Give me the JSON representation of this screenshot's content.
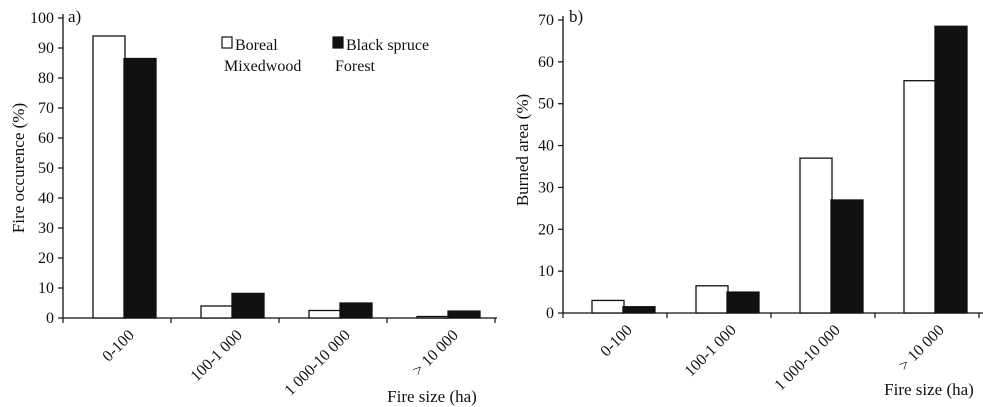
{
  "chart_data": [
    {
      "type": "bar",
      "panel_label": "a)",
      "categories": [
        "0-100",
        "100-1 000",
        "1 000-10 000",
        "> 10 000"
      ],
      "series": [
        {
          "name": "Boreal Mixedwood",
          "legend_lines": [
            "Boreal",
            "Mixedwood"
          ],
          "fill": "#ffffff",
          "values": [
            94,
            4,
            2.5,
            0.5
          ]
        },
        {
          "name": "Black spruce Forest",
          "legend_lines": [
            "Black spruce",
            "Forest"
          ],
          "fill": "#111111",
          "values": [
            86.5,
            8.2,
            5,
            2.3
          ]
        }
      ],
      "title": "",
      "xlabel": "Fire size (ha)",
      "ylabel": "Fire occurence (%)",
      "ylim": [
        0,
        100
      ],
      "yticks": [
        0,
        10,
        20,
        30,
        40,
        50,
        60,
        70,
        80,
        90,
        100
      ],
      "legend_position": "top-right",
      "grid": false
    },
    {
      "type": "bar",
      "panel_label": "b)",
      "categories": [
        "0-100",
        "100-1 000",
        "1 000-10 000",
        "> 10 000"
      ],
      "series": [
        {
          "name": "Boreal Mixedwood",
          "fill": "#ffffff",
          "values": [
            3,
            6.5,
            37,
            55.5
          ]
        },
        {
          "name": "Black spruce Forest",
          "fill": "#111111",
          "values": [
            1.5,
            5,
            27,
            68.5
          ]
        }
      ],
      "title": "",
      "xlabel": "Fire size (ha)",
      "ylabel": "Burned area (%)",
      "ylim": [
        0,
        70
      ],
      "yticks": [
        0,
        10,
        20,
        30,
        40,
        50,
        60,
        70
      ],
      "grid": false
    }
  ]
}
